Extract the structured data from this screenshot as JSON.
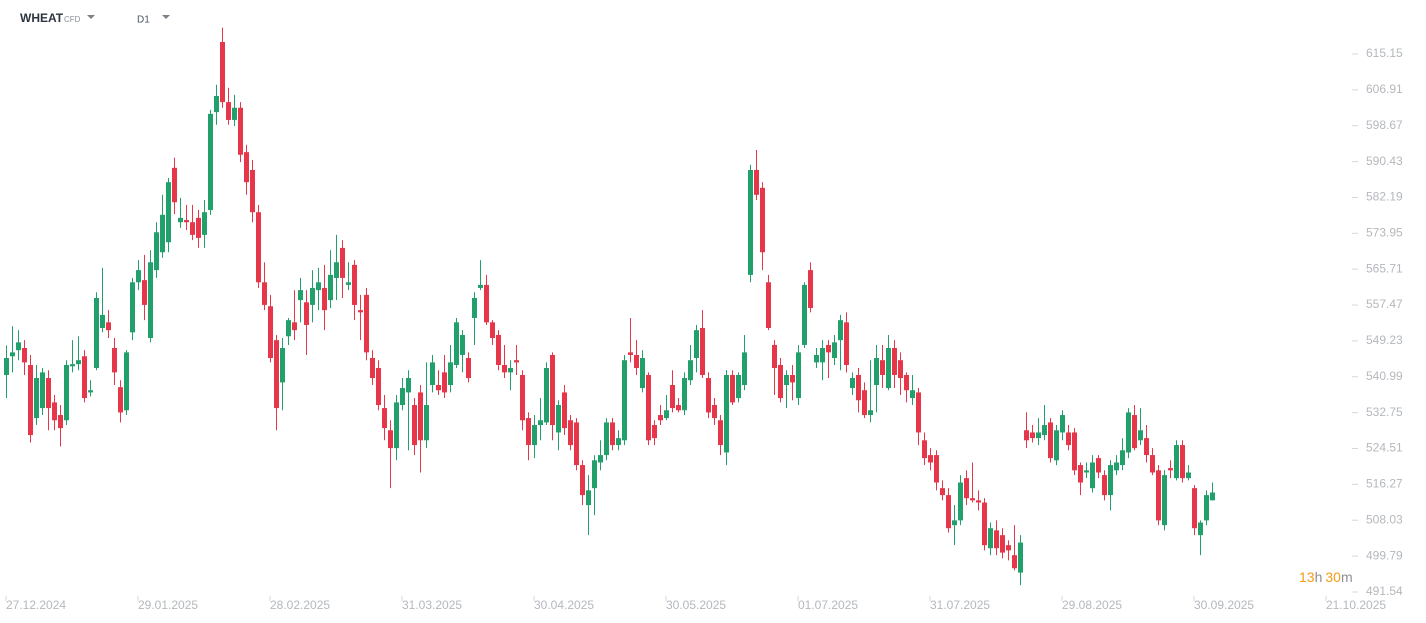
{
  "header": {
    "symbol": "WHEAT",
    "market": "CFD",
    "timeframe": "D1"
  },
  "countdown": [
    "13",
    "h",
    "30",
    "m"
  ],
  "chart_data": {
    "type": "candlestick",
    "up_color": "#22a06b",
    "down_color": "#e5364a",
    "ylim": [
      491.54,
      625.72
    ],
    "yticks": [
      615.15,
      606.91,
      598.67,
      590.43,
      582.19,
      573.95,
      565.71,
      557.47,
      549.23,
      540.99,
      532.75,
      524.51,
      516.27,
      508.03,
      499.79,
      491.54
    ],
    "categories": [
      "27.12.2024",
      null,
      null,
      null,
      null,
      null,
      null,
      null,
      null,
      null,
      null,
      null,
      null,
      null,
      null,
      null,
      null,
      null,
      null,
      null,
      null,
      null,
      "29.01.2025",
      null,
      null,
      null,
      null,
      null,
      null,
      null,
      null,
      null,
      null,
      null,
      null,
      null,
      null,
      null,
      null,
      null,
      null,
      null,
      null,
      null,
      "28.02.2025",
      null,
      null,
      null,
      null,
      null,
      null,
      null,
      null,
      null,
      null,
      null,
      null,
      null,
      null,
      null,
      null,
      null,
      null,
      null,
      null,
      null,
      "31.03.2025",
      null,
      null,
      null,
      null,
      null,
      null,
      null,
      null,
      null,
      null,
      null,
      null,
      null,
      null,
      null,
      null,
      null,
      null,
      null,
      null,
      null,
      "30.04.2025",
      null,
      null,
      null,
      null,
      null,
      null,
      null,
      null,
      null,
      null,
      null,
      null,
      null,
      null,
      null,
      null,
      null,
      null,
      null,
      null,
      null,
      "30.05.2025",
      null,
      null,
      null,
      null,
      null,
      null,
      null,
      null,
      null,
      null,
      null,
      null,
      null,
      null,
      null,
      null,
      null,
      null,
      null,
      null,
      null,
      "01.07.2025",
      null,
      null,
      null,
      null,
      null,
      null,
      null,
      null,
      null,
      null,
      null,
      null,
      null,
      null,
      null,
      null,
      null,
      null,
      null,
      null,
      null,
      "31.07.2025",
      null,
      null,
      null,
      null,
      null,
      null,
      null,
      null,
      null,
      null,
      null,
      null,
      null,
      null,
      null,
      null,
      null,
      null,
      null,
      null,
      null,
      "29.08.2025",
      null,
      null,
      null,
      null,
      null,
      null,
      null,
      null,
      null,
      null,
      null,
      null,
      null,
      null,
      null,
      null,
      null,
      null,
      null,
      null,
      null,
      "30.09.2025",
      null,
      null,
      null,
      null,
      null,
      null,
      null,
      null,
      null,
      null,
      null,
      null,
      null,
      null,
      null,
      null,
      null,
      null,
      null,
      null,
      null,
      "21.10.2025"
    ],
    "open": [
      541.4,
      545.7,
      547.1,
      547.6,
      543.7,
      531.5,
      533.8,
      540.7,
      535.1,
      532.2,
      531.0,
      543.4,
      543.9,
      545.7,
      537.4,
      543.0,
      552.2,
      553.5,
      547.6,
      538.6,
      533.3,
      551.2,
      562.7,
      563.2,
      549.9,
      565.5,
      569.6,
      571.9,
      589.0,
      576.5,
      577.0,
      576.5,
      577.5,
      573.6,
      579.3,
      601.8,
      617.9,
      604.1,
      600.0,
      602.8,
      592.6,
      588.5,
      578.8,
      562.7,
      557.2,
      549.4,
      539.7,
      550.3,
      553.5,
      558.6,
      558.1,
      557.5,
      560.9,
      561.4,
      558.6,
      563.7,
      570.6,
      562.1,
      566.7,
      556.3,
      559.8,
      545.3,
      543.0,
      533.8,
      528.7,
      524.6,
      534.5,
      537.4,
      534.5,
      537.4,
      526.4,
      539.1,
      539.1,
      542.0,
      539.1,
      543.7,
      546.0,
      545.3,
      554.5,
      561.4,
      562.1,
      553.5,
      550.6,
      543.7,
      542.0,
      544.8,
      541.4,
      531.5,
      525.3,
      529.9,
      530.5,
      546.0,
      528.2,
      537.4,
      531.0,
      530.5,
      520.7,
      511.5,
      515.4,
      521.3,
      523.0,
      530.5,
      525.3,
      526.4,
      546.6,
      546.0,
      538.4,
      541.4,
      529.9,
      532.2,
      531.5,
      539.1,
      534.5,
      533.3,
      540.2,
      545.3,
      552.2,
      540.7,
      534.5,
      531.0,
      523.6,
      541.4,
      536.1,
      539.1,
      564.4,
      588.5,
      584.4,
      562.7,
      548.3,
      543.7,
      539.1,
      541.4,
      536.1,
      548.3,
      565.5,
      544.3,
      544.3,
      548.3,
      545.3,
      549.4,
      553.5,
      538.4,
      541.4,
      537.9,
      532.2,
      539.1,
      544.8,
      538.4,
      547.6,
      544.8,
      541.4,
      536.1,
      537.4,
      526.4,
      523.0,
      523.0,
      515.4,
      513.8,
      506.9,
      508.0,
      517.7,
      513.1,
      512.6,
      512.1,
      501.6,
      505.7,
      504.6,
      502.3,
      500.0,
      496.0,
      528.7,
      528.2,
      526.9,
      527.6,
      530.5,
      521.8,
      528.2,
      528.2,
      528.2,
      520.7,
      519.0,
      515.4,
      522.3,
      518.4,
      513.8,
      519.5,
      520.7,
      523.6,
      532.2,
      526.4,
      526.9,
      523.0,
      519.5,
      506.9,
      520.0,
      517.7,
      525.3,
      517.7,
      515.4,
      504.6,
      508.0,
      512.6,
      null,
      null,
      null,
      null,
      null,
      null,
      null,
      null,
      null,
      null,
      null,
      null,
      null,
      null,
      null,
      null,
      null,
      null,
      null
    ],
    "high": [
      548.2,
      552.6,
      551.7,
      549.4,
      546.0,
      543.7,
      543.0,
      542.5,
      536.8,
      534.5,
      544.8,
      549.4,
      550.3,
      547.1,
      540.2,
      560.4,
      566.0,
      556.3,
      549.9,
      540.2,
      547.1,
      563.7,
      567.8,
      569.0,
      570.1,
      576.5,
      582.8,
      586.7,
      591.3,
      582.1,
      580.5,
      580.5,
      579.3,
      581.6,
      602.3,
      608.1,
      621.2,
      607.4,
      605.8,
      604.1,
      594.3,
      590.8,
      580.5,
      567.3,
      559.8,
      550.6,
      549.9,
      554.5,
      560.9,
      563.7,
      560.9,
      565.5,
      566.0,
      566.7,
      570.1,
      573.6,
      572.4,
      567.3,
      567.8,
      559.8,
      561.4,
      547.1,
      544.8,
      536.8,
      531.0,
      536.8,
      540.7,
      542.5,
      536.1,
      539.1,
      544.3,
      546.0,
      542.5,
      546.0,
      548.3,
      554.5,
      551.7,
      546.6,
      560.4,
      567.8,
      564.4,
      554.0,
      551.7,
      548.3,
      544.8,
      548.3,
      542.5,
      532.8,
      532.2,
      536.1,
      544.3,
      546.6,
      535.6,
      539.1,
      532.2,
      531.5,
      521.8,
      518.4,
      523.0,
      526.4,
      531.5,
      531.5,
      528.7,
      546.0,
      554.5,
      549.4,
      547.1,
      542.0,
      531.0,
      534.5,
      536.8,
      542.5,
      536.1,
      542.0,
      548.3,
      552.9,
      556.3,
      542.0,
      536.1,
      532.2,
      542.5,
      542.5,
      542.0,
      550.6,
      589.7,
      593.1,
      585.7,
      564.4,
      549.4,
      545.3,
      542.5,
      543.7,
      548.3,
      562.7,
      567.3,
      547.6,
      549.4,
      549.4,
      550.6,
      555.2,
      555.8,
      542.0,
      543.0,
      539.7,
      544.8,
      548.3,
      548.3,
      550.6,
      549.4,
      546.6,
      542.0,
      541.4,
      538.4,
      528.2,
      524.6,
      524.1,
      517.2,
      515.4,
      511.5,
      518.4,
      519.5,
      521.3,
      514.9,
      513.1,
      507.5,
      508.0,
      506.2,
      503.4,
      506.9,
      504.6,
      532.8,
      529.9,
      531.5,
      534.5,
      531.5,
      529.9,
      533.3,
      529.9,
      529.2,
      521.3,
      521.3,
      523.0,
      523.0,
      519.5,
      521.8,
      523.0,
      526.9,
      533.8,
      534.5,
      533.8,
      529.9,
      524.6,
      520.7,
      519.5,
      521.8,
      526.4,
      526.4,
      520.7,
      516.1,
      508.0,
      514.9,
      516.7,
      null,
      null,
      null,
      null,
      null,
      null,
      null,
      null,
      null,
      null,
      null,
      null,
      null,
      null,
      null,
      null,
      null,
      null,
      null
    ],
    "low": [
      536.1,
      542.0,
      544.8,
      541.4,
      525.9,
      529.9,
      532.2,
      528.7,
      528.7,
      525.0,
      529.9,
      542.0,
      542.5,
      535.1,
      536.5,
      542.5,
      551.2,
      549.9,
      539.1,
      530.5,
      532.2,
      549.4,
      560.9,
      554.0,
      548.9,
      563.7,
      568.3,
      569.6,
      578.4,
      575.2,
      574.7,
      572.4,
      570.6,
      570.6,
      578.2,
      598.9,
      602.8,
      598.9,
      598.6,
      590.3,
      582.8,
      576.5,
      561.4,
      556.3,
      544.3,
      528.7,
      533.3,
      548.3,
      549.4,
      553.5,
      546.0,
      553.5,
      556.3,
      551.7,
      556.8,
      558.6,
      559.1,
      560.9,
      554.0,
      549.4,
      544.8,
      539.1,
      533.3,
      526.4,
      515.4,
      521.8,
      533.3,
      524.1,
      523.0,
      519.0,
      524.6,
      537.4,
      536.8,
      536.1,
      537.4,
      543.0,
      542.0,
      539.7,
      548.3,
      560.9,
      552.9,
      548.3,
      542.5,
      540.7,
      537.9,
      541.4,
      528.7,
      521.8,
      522.3,
      526.4,
      529.9,
      526.4,
      524.1,
      527.6,
      524.1,
      519.5,
      511.5,
      504.6,
      509.2,
      519.5,
      521.8,
      524.1,
      524.1,
      525.3,
      544.3,
      541.4,
      537.4,
      525.3,
      525.3,
      529.9,
      531.0,
      532.8,
      532.8,
      532.2,
      539.1,
      542.0,
      540.7,
      531.5,
      529.9,
      523.0,
      520.7,
      534.5,
      535.1,
      537.9,
      562.7,
      581.6,
      565.5,
      551.7,
      536.8,
      535.1,
      533.8,
      535.6,
      534.5,
      547.6,
      555.8,
      543.0,
      540.2,
      540.7,
      543.7,
      542.5,
      542.0,
      536.8,
      532.8,
      531.5,
      530.5,
      532.8,
      538.4,
      537.9,
      538.4,
      536.8,
      535.1,
      534.5,
      525.3,
      520.7,
      519.5,
      514.9,
      512.6,
      505.2,
      502.3,
      506.9,
      511.5,
      512.1,
      510.3,
      501.1,
      500.0,
      500.0,
      499.3,
      498.8,
      496.5,
      493.1,
      524.6,
      525.9,
      525.3,
      526.4,
      521.3,
      520.7,
      526.4,
      524.1,
      518.4,
      513.8,
      517.7,
      514.4,
      517.7,
      512.6,
      510.3,
      518.4,
      519.5,
      522.3,
      524.1,
      525.3,
      521.3,
      518.4,
      506.9,
      505.7,
      517.7,
      517.2,
      516.7,
      517.2,
      504.6,
      500.0,
      506.9,
      512.6,
      null,
      null,
      null,
      null,
      null,
      null,
      null,
      null,
      null,
      null,
      null,
      null,
      null,
      null,
      null,
      null,
      null,
      null,
      null
    ],
    "close": [
      545.3,
      546.6,
      548.9,
      544.3,
      527.6,
      540.7,
      542.0,
      533.8,
      531.0,
      529.2,
      543.7,
      543.9,
      544.8,
      536.1,
      537.9,
      559.1,
      555.2,
      551.7,
      542.0,
      532.8,
      546.6,
      562.7,
      565.5,
      557.5,
      567.3,
      574.2,
      578.2,
      585.7,
      581.1,
      577.5,
      576.5,
      573.6,
      572.9,
      578.8,
      601.4,
      605.5,
      604.1,
      600.0,
      602.8,
      592.0,
      585.7,
      578.8,
      562.7,
      557.5,
      545.3,
      533.8,
      547.6,
      554.0,
      551.7,
      560.9,
      552.9,
      561.4,
      562.7,
      556.3,
      564.4,
      567.3,
      563.7,
      562.7,
      557.5,
      555.8,
      546.6,
      540.7,
      534.5,
      529.2,
      524.6,
      535.1,
      538.4,
      540.7,
      525.3,
      526.4,
      534.5,
      544.3,
      537.9,
      537.4,
      544.3,
      553.5,
      550.6,
      540.7,
      559.1,
      562.1,
      553.5,
      549.9,
      543.7,
      542.0,
      543.0,
      544.3,
      531.0,
      525.3,
      529.9,
      531.0,
      543.0,
      529.9,
      534.5,
      529.2,
      525.3,
      520.7,
      513.8,
      514.9,
      521.8,
      523.0,
      530.5,
      525.3,
      526.9,
      544.8,
      546.0,
      543.0,
      545.3,
      526.4,
      526.9,
      531.0,
      533.3,
      533.8,
      533.3,
      540.7,
      544.8,
      551.7,
      541.4,
      532.8,
      531.5,
      525.3,
      541.4,
      535.1,
      541.4,
      546.6,
      588.5,
      582.8,
      569.6,
      552.2,
      543.0,
      536.1,
      541.4,
      539.7,
      546.6,
      562.1,
      556.8,
      546.0,
      547.6,
      546.6,
      548.9,
      554.0,
      543.7,
      540.7,
      535.6,
      532.2,
      533.3,
      545.3,
      541.4,
      547.6,
      541.4,
      540.7,
      537.9,
      537.9,
      528.2,
      522.3,
      521.3,
      516.7,
      513.8,
      506.2,
      508.0,
      516.7,
      513.1,
      512.6,
      512.1,
      502.3,
      506.2,
      501.6,
      500.6,
      501.1,
      497.0,
      502.9,
      526.4,
      526.9,
      528.2,
      529.9,
      522.3,
      528.7,
      532.2,
      525.3,
      519.5,
      516.7,
      519.5,
      521.3,
      519.0,
      513.8,
      520.7,
      521.3,
      524.1,
      532.8,
      524.6,
      528.7,
      523.0,
      519.0,
      508.0,
      518.4,
      519.5,
      525.3,
      517.7,
      519.0,
      506.2,
      507.5,
      513.8,
      514.4,
      null,
      null,
      null,
      null,
      null,
      null,
      null,
      null,
      null,
      null,
      null,
      null,
      null,
      null,
      null,
      null,
      null,
      null,
      null
    ]
  }
}
